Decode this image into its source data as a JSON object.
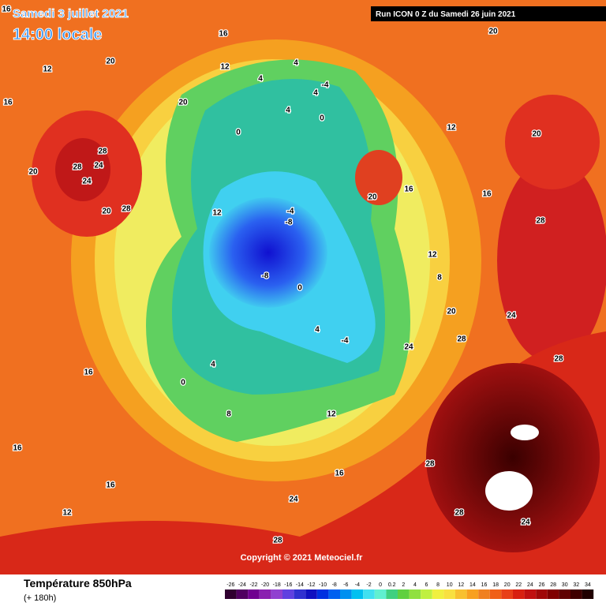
{
  "header": {
    "date": "Samedi 3 juillet 2021",
    "time": "14:00 locale",
    "run": "Run ICON 0 Z du Samedi 26 juin 2021"
  },
  "copyright": "Copyright © 2021 Meteociel.fr",
  "footer": {
    "title": "Température 850hPa",
    "lead": "(+ 180h)"
  },
  "scale": [
    -26,
    -24,
    -22,
    -20,
    -18,
    -16,
    -14,
    -12,
    -10,
    -8,
    -6,
    -4,
    -2,
    0,
    0.2,
    2,
    4,
    6,
    8,
    10,
    12,
    14,
    16,
    18,
    20,
    22,
    24,
    26,
    28,
    30,
    32,
    34
  ],
  "map": {
    "labels": [
      16,
      12,
      20,
      16,
      28,
      24,
      20,
      28,
      24,
      20,
      28,
      12,
      16,
      12,
      4,
      4,
      4,
      0,
      0,
      -4,
      -8,
      -8,
      0,
      -4,
      4,
      0,
      4,
      8,
      12,
      16,
      20,
      16,
      12,
      20,
      24,
      28,
      28,
      24,
      28,
      28,
      28,
      24,
      28,
      24,
      16,
      16,
      16,
      12,
      20,
      20,
      20,
      12,
      16,
      8,
      -4,
      4
    ]
  }
}
